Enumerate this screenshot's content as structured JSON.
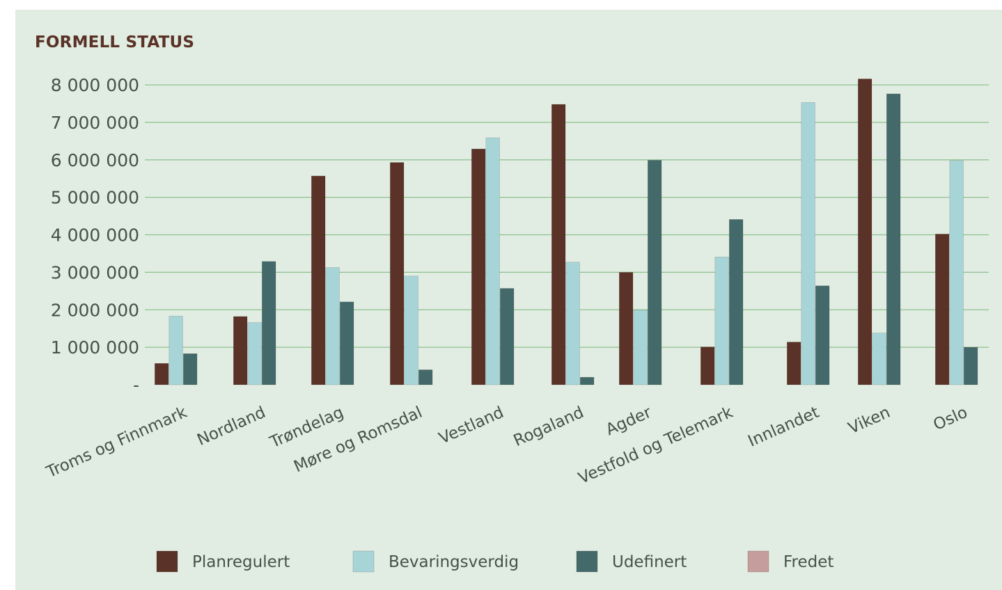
{
  "chart_data": {
    "type": "bar",
    "title": "FORMELL STATUS",
    "xlabel": "",
    "ylabel": "",
    "ylim": [
      0,
      8000000
    ],
    "yticks": [
      {
        "value": 0,
        "label": "-"
      },
      {
        "value": 1000000,
        "label": "1 000 000"
      },
      {
        "value": 2000000,
        "label": "2 000 000"
      },
      {
        "value": 3000000,
        "label": "3 000 000"
      },
      {
        "value": 4000000,
        "label": "4 000 000"
      },
      {
        "value": 5000000,
        "label": "5 000 000"
      },
      {
        "value": 6000000,
        "label": "6 000 000"
      },
      {
        "value": 7000000,
        "label": "7 000 000"
      },
      {
        "value": 8000000,
        "label": "8 000 000"
      }
    ],
    "grid": true,
    "legend_position": "bottom",
    "categories": [
      "Troms og Finnmark",
      "Nordland",
      "Trøndelag",
      "Møre og Romsdal",
      "Vestland",
      "Rogaland",
      "Agder",
      "Vestfold og Telemark",
      "Innlandet",
      "Viken",
      "Oslo"
    ],
    "series": [
      {
        "name": "Planregulert",
        "color": "#5a3227",
        "values": [
          570000,
          1820000,
          5570000,
          5930000,
          6290000,
          7480000,
          3000000,
          1010000,
          1140000,
          8160000,
          4020000
        ]
      },
      {
        "name": "Bevaringsverdig",
        "color": "#a7d4d7",
        "values": [
          1830000,
          1660000,
          3130000,
          2900000,
          6590000,
          3270000,
          1990000,
          3410000,
          7530000,
          1380000,
          5980000
        ]
      },
      {
        "name": "Udefinert",
        "color": "#43696a",
        "values": [
          830000,
          3290000,
          2210000,
          400000,
          2570000,
          200000,
          5990000,
          4410000,
          2640000,
          7760000,
          1000000
        ]
      },
      {
        "name": "Fredet",
        "color": "#c49d9c",
        "values": [
          0,
          0,
          0,
          0,
          0,
          0,
          0,
          0,
          0,
          0,
          0
        ]
      }
    ]
  }
}
